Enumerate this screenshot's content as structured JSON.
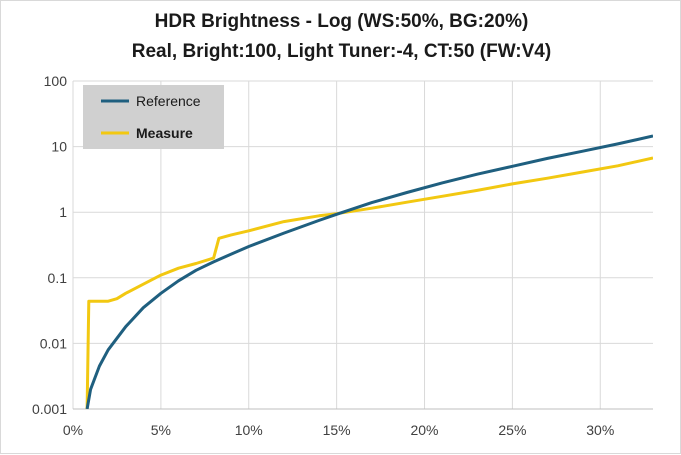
{
  "chart_data": {
    "type": "line",
    "title": "HDR Brightness - Log (WS:50%, BG:20%)",
    "subtitle": "Real, Bright:100, Light Tuner:-4, CT:50 (FW:V4)",
    "xlabel": "",
    "ylabel": "",
    "xlim": [
      0,
      33
    ],
    "ylim": [
      0.001,
      100
    ],
    "yscale": "log",
    "x_ticks": [
      0,
      5,
      10,
      15,
      20,
      25,
      30
    ],
    "x_tick_labels": [
      "0%",
      "5%",
      "10%",
      "15%",
      "20%",
      "25%",
      "30%"
    ],
    "y_ticks": [
      0.001,
      0.01,
      0.1,
      1,
      10,
      100
    ],
    "y_tick_labels": [
      "0.001",
      "0.01",
      "0.1",
      "1",
      "10",
      "100"
    ],
    "grid": "horizontal and vertical",
    "legend_position": "top-left",
    "series": [
      {
        "name": "Reference",
        "color": "#1f5f7f",
        "x": [
          0.8,
          1.0,
          1.5,
          2.0,
          3.0,
          4.0,
          5.0,
          6.0,
          7.0,
          8.0,
          9.0,
          10.0,
          12.0,
          14.0,
          15.0,
          17.0,
          19.0,
          21.0,
          23.0,
          25.0,
          27.0,
          29.0,
          31.0,
          33.0
        ],
        "y": [
          0.001,
          0.002,
          0.0045,
          0.008,
          0.018,
          0.035,
          0.058,
          0.09,
          0.13,
          0.175,
          0.23,
          0.3,
          0.48,
          0.75,
          0.93,
          1.4,
          2.0,
          2.8,
          3.8,
          5.0,
          6.6,
          8.5,
          11.0,
          14.5
        ]
      },
      {
        "name": "Measure",
        "color": "#f2c811",
        "x": [
          0.8,
          0.9,
          1.0,
          2.0,
          2.5,
          3.0,
          4.0,
          5.0,
          6.0,
          7.0,
          8.0,
          8.3,
          9.0,
          10.0,
          12.0,
          14.0,
          15.0,
          17.0,
          19.0,
          21.0,
          23.0,
          25.0,
          27.0,
          29.0,
          31.0,
          33.0
        ],
        "y": [
          0.001,
          0.044,
          0.044,
          0.044,
          0.048,
          0.058,
          0.08,
          0.11,
          0.14,
          0.165,
          0.2,
          0.4,
          0.45,
          0.52,
          0.72,
          0.88,
          0.95,
          1.15,
          1.42,
          1.75,
          2.15,
          2.7,
          3.3,
          4.1,
          5.1,
          6.7
        ]
      }
    ]
  }
}
